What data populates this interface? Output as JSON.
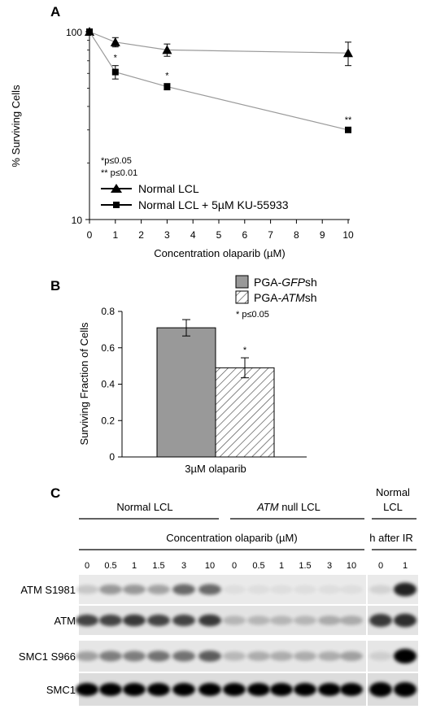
{
  "panel_labels": {
    "a": "A",
    "b": "B",
    "c": "C"
  },
  "chart_data": [
    {
      "type": "line",
      "xlabel": "Concentration olaparib (µM)",
      "ylabel": "% Surviving Cells",
      "xlim": [
        0,
        10
      ],
      "ylim": [
        10,
        100
      ],
      "y_scale": "log",
      "x_ticks": [
        "0",
        "1",
        "2",
        "3",
        "4",
        "5",
        "6",
        "7",
        "8",
        "9",
        "10"
      ],
      "y_ticks": [
        "10",
        "100"
      ],
      "series": [
        {
          "name": "Normal LCL",
          "marker": "triangle",
          "x": [
            0,
            1,
            3,
            10
          ],
          "y": [
            100,
            88,
            80,
            77
          ],
          "err": [
            0,
            5,
            6,
            11
          ]
        },
        {
          "name": "Normal LCL + 5µM KU-55933",
          "marker": "square",
          "x": [
            0,
            1,
            3,
            10
          ],
          "y": [
            100,
            61,
            51,
            30
          ],
          "err": [
            0,
            5,
            2,
            0.8
          ]
        }
      ],
      "significance": [
        {
          "x": 1,
          "label": "*"
        },
        {
          "x": 3,
          "label": "*"
        },
        {
          "x": 10,
          "label": "**"
        }
      ],
      "notes": [
        "*p≤0.05",
        "** p≤0.01"
      ],
      "legend_position": "bottom-left"
    },
    {
      "type": "bar",
      "categories": [
        "3µM olaparib"
      ],
      "ylabel": "Surviving Fraction of Cells",
      "ylim": [
        0,
        0.8
      ],
      "y_ticks": [
        "0",
        "0.2",
        "0.4",
        "0.6",
        "0.8"
      ],
      "series": [
        {
          "name_prefix": "PGA-",
          "name_italic": "GFP",
          "name_suffix": "sh",
          "fill": "#999999",
          "values": [
            0.71
          ],
          "err": [
            0.045
          ]
        },
        {
          "name_prefix": "PGA-",
          "name_italic": "ATM",
          "name_suffix": "sh",
          "fill": "hatched",
          "values": [
            0.49
          ],
          "err": [
            0.055
          ]
        }
      ],
      "significance": "*",
      "note": "* p≤0.05",
      "legend_position": "top-right"
    }
  ],
  "blot": {
    "group1": "Normal LCL",
    "group2_italic": "ATM",
    "group2_rest": " null LCL",
    "group3_line1": "Normal",
    "group3_line2": "LCL",
    "conc_label": "Concentration olaparib (µM)",
    "ir_label": "h after IR",
    "lanes": [
      "0",
      "0.5",
      "1",
      "1.5",
      "3",
      "10",
      "0",
      "0.5",
      "1",
      "1.5",
      "3",
      "10"
    ],
    "ir_lanes": [
      "0",
      "1"
    ],
    "rows": [
      {
        "label": "ATM S1981"
      },
      {
        "label": "ATM"
      },
      {
        "label": "SMC1 S966"
      },
      {
        "label": "SMC1"
      }
    ]
  }
}
